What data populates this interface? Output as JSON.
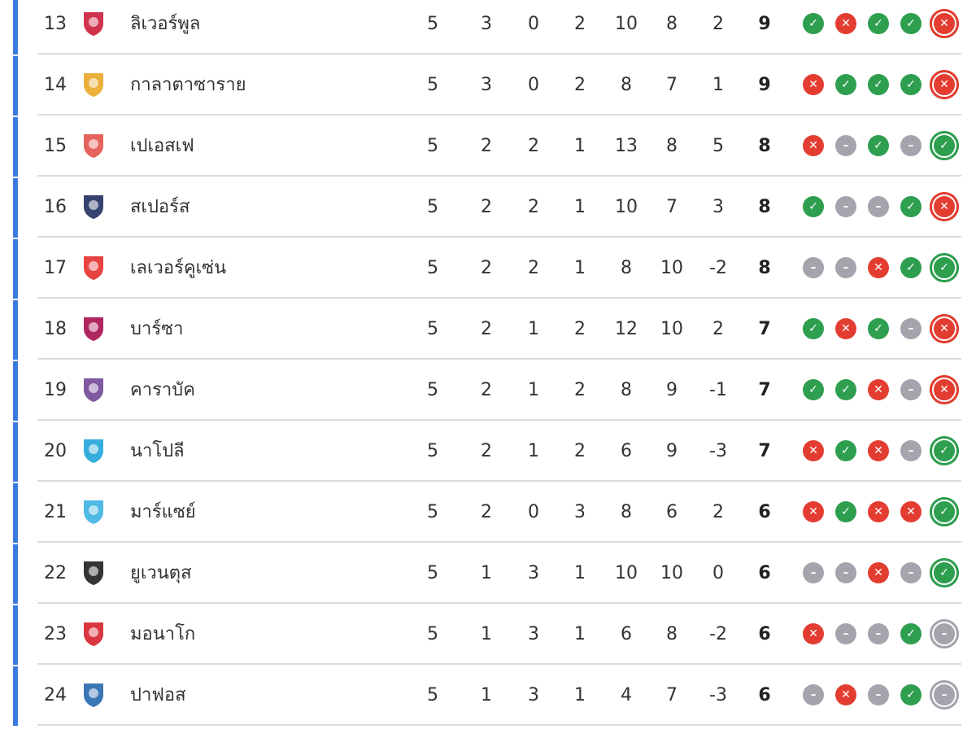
{
  "colors": {
    "win": "#2e9e4f",
    "loss": "#e33d31",
    "draw": "#a4a4ac",
    "qualification_bar": "#3b7be0"
  },
  "rows": [
    {
      "rank": "13",
      "team": "ลิเวอร์พูล",
      "logo": "liverpool-logo",
      "logo_color": "#c8102e",
      "p": "5",
      "w": "3",
      "d": "0",
      "l": "2",
      "gf": "10",
      "ga": "8",
      "gd": "2",
      "pts": "9",
      "form": [
        "W",
        "L",
        "W",
        "W",
        "L"
      ]
    },
    {
      "rank": "14",
      "team": "กาลาตาซาราย",
      "logo": "galatasaray-logo",
      "logo_color": "#e8a317",
      "p": "5",
      "w": "3",
      "d": "0",
      "l": "2",
      "gf": "8",
      "ga": "7",
      "gd": "1",
      "pts": "9",
      "form": [
        "L",
        "W",
        "W",
        "W",
        "L"
      ]
    },
    {
      "rank": "15",
      "team": "เปเอสเฟ",
      "logo": "psv-logo",
      "logo_color": "#e0483e",
      "p": "5",
      "w": "2",
      "d": "2",
      "l": "1",
      "gf": "13",
      "ga": "8",
      "gd": "5",
      "pts": "8",
      "form": [
        "L",
        "D",
        "W",
        "D",
        "W"
      ]
    },
    {
      "rank": "16",
      "team": "สเปอร์ส",
      "logo": "tottenham-logo",
      "logo_color": "#132257",
      "p": "5",
      "w": "2",
      "d": "2",
      "l": "1",
      "gf": "10",
      "ga": "7",
      "gd": "3",
      "pts": "8",
      "form": [
        "W",
        "D",
        "D",
        "W",
        "L"
      ]
    },
    {
      "rank": "17",
      "team": "เลเวอร์คูเซ่น",
      "logo": "leverkusen-logo",
      "logo_color": "#e32221",
      "p": "5",
      "w": "2",
      "d": "2",
      "l": "1",
      "gf": "8",
      "ga": "10",
      "gd": "-2",
      "pts": "8",
      "form": [
        "D",
        "D",
        "L",
        "W",
        "W"
      ]
    },
    {
      "rank": "18",
      "team": "บาร์ซา",
      "logo": "barcelona-logo",
      "logo_color": "#a50044",
      "p": "5",
      "w": "2",
      "d": "1",
      "l": "2",
      "gf": "12",
      "ga": "10",
      "gd": "2",
      "pts": "7",
      "form": [
        "W",
        "L",
        "W",
        "D",
        "L"
      ]
    },
    {
      "rank": "19",
      "team": "คาราบัค",
      "logo": "qarabag-logo",
      "logo_color": "#6a3d8f",
      "p": "5",
      "w": "2",
      "d": "1",
      "l": "2",
      "gf": "8",
      "ga": "9",
      "gd": "-1",
      "pts": "7",
      "form": [
        "W",
        "W",
        "L",
        "D",
        "L"
      ]
    },
    {
      "rank": "20",
      "team": "นาโปลี",
      "logo": "napoli-logo",
      "logo_color": "#12a0d7",
      "p": "5",
      "w": "2",
      "d": "1",
      "l": "2",
      "gf": "6",
      "ga": "9",
      "gd": "-3",
      "pts": "7",
      "form": [
        "L",
        "W",
        "L",
        "D",
        "W"
      ]
    },
    {
      "rank": "21",
      "team": "มาร์แซย์",
      "logo": "marseille-logo",
      "logo_color": "#2faee0",
      "p": "5",
      "w": "2",
      "d": "0",
      "l": "3",
      "gf": "8",
      "ga": "6",
      "gd": "2",
      "pts": "6",
      "form": [
        "L",
        "W",
        "L",
        "L",
        "W"
      ]
    },
    {
      "rank": "22",
      "team": "ยูเวนตุส",
      "logo": "juventus-logo",
      "logo_color": "#111111",
      "p": "5",
      "w": "1",
      "d": "3",
      "l": "1",
      "gf": "10",
      "ga": "10",
      "gd": "0",
      "pts": "6",
      "form": [
        "D",
        "D",
        "L",
        "D",
        "W"
      ]
    },
    {
      "rank": "23",
      "team": "มอนาโก",
      "logo": "monaco-logo",
      "logo_color": "#d4141f",
      "p": "5",
      "w": "1",
      "d": "3",
      "l": "1",
      "gf": "6",
      "ga": "8",
      "gd": "-2",
      "pts": "6",
      "form": [
        "L",
        "D",
        "D",
        "W",
        "D"
      ]
    },
    {
      "rank": "24",
      "team": "ปาฟอส",
      "logo": "pafos-logo",
      "logo_color": "#1a5fa8",
      "p": "5",
      "w": "1",
      "d": "3",
      "l": "1",
      "gf": "4",
      "ga": "7",
      "gd": "-3",
      "pts": "6",
      "form": [
        "D",
        "L",
        "D",
        "W",
        "D"
      ]
    }
  ]
}
